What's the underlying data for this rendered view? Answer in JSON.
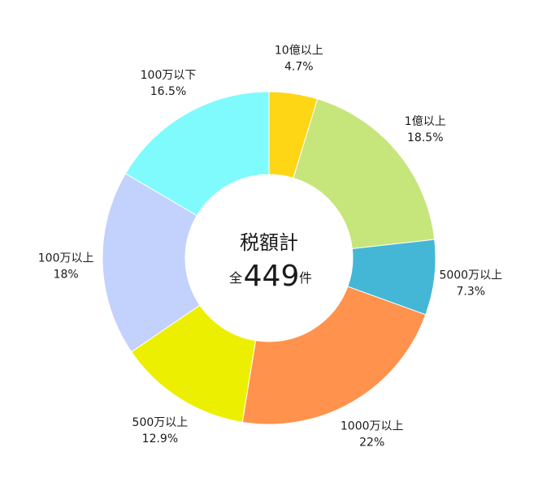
{
  "chart_data": {
    "type": "pie",
    "categories": [
      "10億以上",
      "1億以上",
      "5000万以上",
      "1000万以上",
      "500万以上",
      "100万以上",
      "100万以下"
    ],
    "values": [
      4.7,
      18.5,
      7.3,
      22,
      12.9,
      18,
      16.5
    ],
    "value_labels": [
      "4.7%",
      "18.5%",
      "7.3%",
      "22%",
      "12.9%",
      "18%",
      "16.5%"
    ],
    "colors": [
      "#ffd615",
      "#c6e57b",
      "#44b7d6",
      "#ff924c",
      "#edef00",
      "#c3d1fd",
      "#7ffbfe"
    ],
    "donut": true,
    "center": {
      "title": "税額計",
      "prefix": "全",
      "count": "449",
      "suffix": "件"
    }
  }
}
